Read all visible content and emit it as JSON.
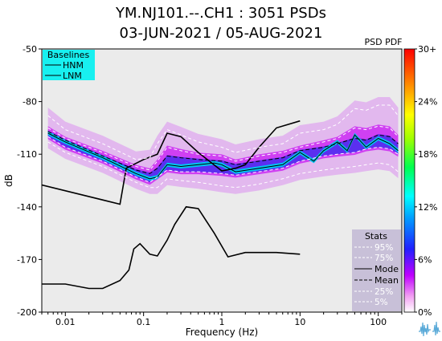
{
  "header": {
    "title_line1": "YM.NJ101.--.CH1 : 3051 PSDs",
    "title_line2": "03-JUN-2021 / 05-AUG-2021"
  },
  "colorbar": {
    "title": "PSD PDF",
    "ticks": [
      "30+",
      "24%",
      "18%",
      "12%",
      "6%",
      "0%"
    ]
  },
  "baselines_legend": {
    "title": "Baselines",
    "items": [
      "HNM",
      "LNM"
    ],
    "bg_color": "#18f0f0"
  },
  "stats_legend": {
    "title": "Stats",
    "items": [
      "95%",
      "75%",
      "Mode",
      "Mean",
      "25%",
      "5%"
    ],
    "bg_color": "#c8c0d8"
  },
  "chart_data": {
    "type": "line",
    "xlabel": "Frequency (Hz)",
    "ylabel": "dB",
    "xscale": "log",
    "xlim": [
      0.005,
      200
    ],
    "ylim": [
      -200,
      -50
    ],
    "xticks": [
      0.01,
      0.1,
      1,
      10,
      100
    ],
    "xtick_labels": [
      "0.01",
      "0.1",
      "1",
      "10",
      "100"
    ],
    "yticks": [
      -50,
      -80,
      -110,
      -140,
      -170,
      -200
    ],
    "ytick_labels": [
      "-50",
      "-80",
      "-110",
      "-140",
      "-170",
      "-200"
    ],
    "baselines": [
      {
        "name": "HNM",
        "x": [
          0.005,
          0.05,
          0.06,
          0.1,
          0.15,
          0.2,
          0.3,
          0.5,
          1,
          1.5,
          2,
          3,
          5,
          10
        ],
        "y": [
          -127.5,
          -138.5,
          -118,
          -113,
          -110,
          -98,
          -100,
          -109,
          -119.5,
          -118,
          -116,
          -106,
          -95,
          -91
        ]
      },
      {
        "name": "LNM",
        "x": [
          0.005,
          0.01,
          0.02,
          0.03,
          0.05,
          0.065,
          0.075,
          0.09,
          0.12,
          0.15,
          0.2,
          0.25,
          0.35,
          0.5,
          0.8,
          1.2,
          2,
          3,
          5,
          10
        ],
        "y": [
          -184,
          -184,
          -186.5,
          -186.5,
          -182,
          -176,
          -164,
          -161,
          -167,
          -168,
          -159,
          -150,
          -140,
          -141,
          -155,
          -168.5,
          -166,
          -166,
          -166,
          -167
        ]
      }
    ],
    "series": [
      {
        "name": "95%",
        "x": [
          0.006,
          0.01,
          0.03,
          0.08,
          0.12,
          0.15,
          0.2,
          0.3,
          0.5,
          1,
          1.5,
          3,
          6,
          10,
          20,
          30,
          50,
          70,
          100,
          140,
          180
        ],
        "y": [
          -88,
          -96,
          -104,
          -113,
          -112,
          -104,
          -96,
          -99,
          -103,
          -106,
          -109,
          -106,
          -104,
          -98,
          -96,
          -93,
          -84,
          -85,
          -82,
          -82,
          -88
        ]
      },
      {
        "name": "75%",
        "x": [
          0.006,
          0.01,
          0.03,
          0.08,
          0.12,
          0.15,
          0.2,
          0.3,
          0.5,
          1,
          1.5,
          3,
          6,
          10,
          20,
          30,
          50,
          70,
          100,
          140,
          180
        ],
        "y": [
          -95,
          -101,
          -109,
          -117,
          -119,
          -114,
          -106,
          -108,
          -110,
          -111,
          -114,
          -111,
          -109,
          -106,
          -103,
          -101,
          -95,
          -96,
          -94,
          -95,
          -100
        ]
      },
      {
        "name": "Mode",
        "x": [
          0.006,
          0.01,
          0.03,
          0.08,
          0.12,
          0.15,
          0.2,
          0.3,
          0.5,
          0.8,
          1,
          1.5,
          3,
          6,
          10,
          15,
          20,
          30,
          40,
          50,
          70,
          100,
          140,
          180
        ],
        "y": [
          -98,
          -103,
          -112,
          -121,
          -124,
          -123,
          -116,
          -117,
          -116,
          -115,
          -116,
          -120,
          -118,
          -116,
          -109,
          -114,
          -108,
          -103,
          -108,
          -99,
          -106,
          -101,
          -104,
          -108
        ]
      },
      {
        "name": "Mean",
        "x": [
          0.006,
          0.01,
          0.03,
          0.08,
          0.12,
          0.15,
          0.2,
          0.3,
          0.5,
          1,
          1.5,
          3,
          6,
          10,
          20,
          30,
          50,
          70,
          100,
          140,
          180
        ],
        "y": [
          -97,
          -102,
          -111,
          -119,
          -121,
          -118,
          -111,
          -112,
          -113,
          -114,
          -116,
          -114,
          -112,
          -108,
          -106,
          -104,
          -101,
          -102,
          -99,
          -100,
          -104
        ]
      },
      {
        "name": "25%",
        "x": [
          0.006,
          0.01,
          0.03,
          0.08,
          0.12,
          0.15,
          0.2,
          0.3,
          0.5,
          1,
          1.5,
          3,
          6,
          10,
          20,
          30,
          50,
          70,
          100,
          140,
          180
        ],
        "y": [
          -100,
          -106,
          -114,
          -123,
          -126,
          -123,
          -119,
          -120,
          -120,
          -121,
          -122,
          -120,
          -118,
          -114,
          -111,
          -110,
          -109,
          -107,
          -106,
          -107,
          -110
        ]
      },
      {
        "name": "5%",
        "x": [
          0.006,
          0.01,
          0.03,
          0.08,
          0.12,
          0.15,
          0.2,
          0.3,
          0.5,
          1,
          1.5,
          3,
          6,
          10,
          20,
          30,
          50,
          70,
          100,
          140,
          180
        ],
        "y": [
          -103,
          -109,
          -117,
          -126,
          -129,
          -129,
          -124,
          -125,
          -126,
          -128,
          -129,
          -127,
          -124,
          -121,
          -119,
          -118,
          -117,
          -116,
          -115,
          -116,
          -120
        ]
      }
    ]
  }
}
